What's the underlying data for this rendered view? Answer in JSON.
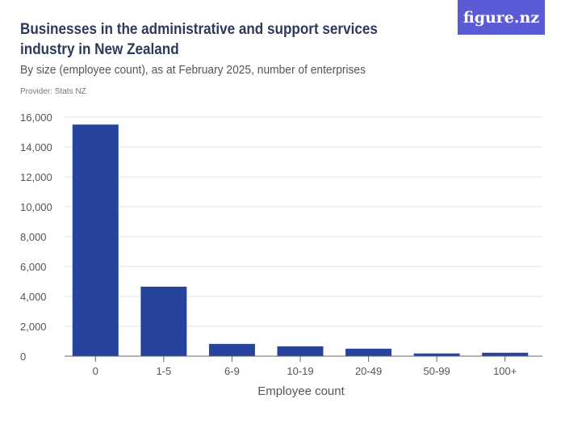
{
  "header": {
    "title": "Businesses in the administrative and support services industry in New Zealand",
    "subtitle": "By size (employee count), as at February 2025, number of enterprises",
    "provider": "Provider: Stats NZ",
    "logo": "figure.nz"
  },
  "colors": {
    "bar": "#27449c",
    "grid": "#e3e3e3",
    "logo_bg": "#5b5bd6"
  },
  "chart_data": {
    "type": "bar",
    "title": "Businesses in the administrative and support services industry in New Zealand",
    "xlabel": "Employee count",
    "ylabel": "",
    "categories": [
      "0",
      "1-5",
      "6-9",
      "10-19",
      "20-49",
      "50-99",
      "100+"
    ],
    "values": [
      15500,
      4650,
      820,
      660,
      500,
      180,
      230
    ],
    "ylim": [
      0,
      16000
    ],
    "yticks": [
      0,
      2000,
      4000,
      6000,
      8000,
      10000,
      12000,
      14000,
      16000
    ],
    "ytick_labels": [
      "0",
      "2,000",
      "4,000",
      "6,000",
      "8,000",
      "10,000",
      "12,000",
      "14,000",
      "16,000"
    ],
    "grid": true
  }
}
